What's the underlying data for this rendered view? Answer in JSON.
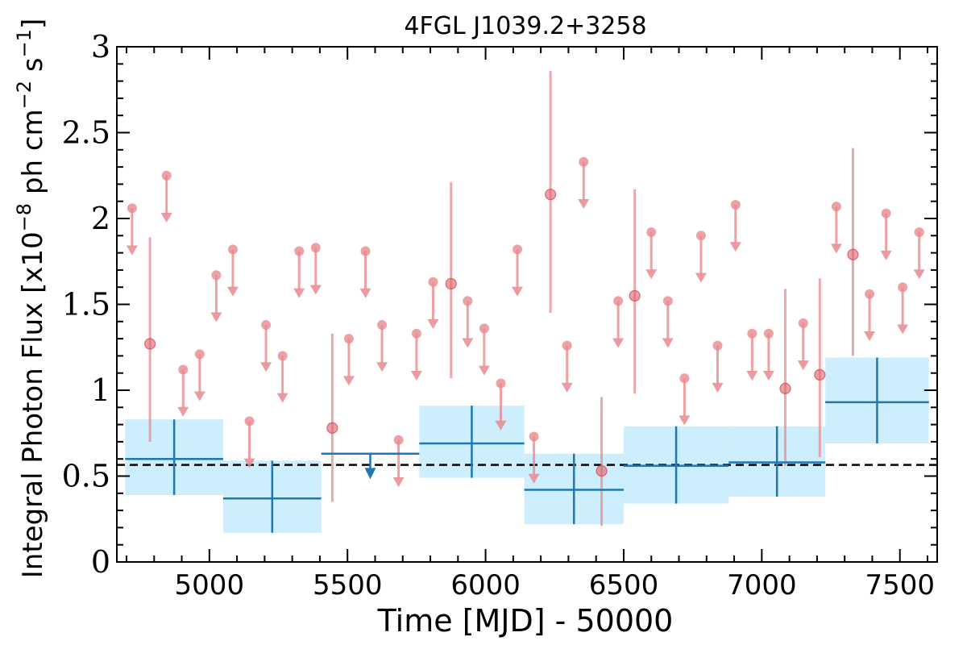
{
  "chart_data": {
    "type": "scatter",
    "title": "4FGL J1039.2+3258",
    "xlabel": "Time [MJD] - 50000",
    "ylabel": "Integral Photon Flux [x10",
    "ylabel_exp1": "−8",
    "ylabel_mid": " ph cm",
    "ylabel_exp2": "−2",
    "ylabel_end": " s",
    "ylabel_exp3": "−1",
    "ylabel_close": "]",
    "xlim": [
      4665,
      7635
    ],
    "ylim": [
      0,
      3
    ],
    "x_ticks": [
      5000,
      5500,
      6000,
      6500,
      7000,
      7500
    ],
    "x_tick_labels": [
      "5000",
      "5500",
      "6000",
      "6500",
      "7000",
      "7500"
    ],
    "y_ticks": [
      0,
      0.5,
      1,
      1.5,
      2,
      2.5,
      3
    ],
    "y_tick_labels": [
      "0",
      "0.5",
      "1",
      "1.5",
      "2",
      "2.5",
      "3"
    ],
    "mean_flux": 0.565,
    "colors": {
      "light_points": "#e88a8f",
      "long_bins": "#1f77b4",
      "band_fill": "#cdeefc"
    },
    "light_curve_detections": [
      {
        "x": 4785,
        "y": 1.27,
        "ylo": 0.7,
        "yhi": 1.89
      },
      {
        "x": 5445,
        "y": 0.78,
        "ylo": 0.35,
        "yhi": 1.33
      },
      {
        "x": 5875,
        "y": 1.62,
        "ylo": 1.07,
        "yhi": 2.21
      },
      {
        "x": 6235,
        "y": 2.14,
        "ylo": 1.45,
        "yhi": 2.86
      },
      {
        "x": 6420,
        "y": 0.53,
        "ylo": 0.21,
        "yhi": 0.96
      },
      {
        "x": 6540,
        "y": 1.55,
        "ylo": 0.98,
        "yhi": 2.17
      },
      {
        "x": 7085,
        "y": 1.01,
        "ylo": 0.56,
        "yhi": 1.59
      },
      {
        "x": 7210,
        "y": 1.09,
        "ylo": 0.61,
        "yhi": 1.65
      },
      {
        "x": 7330,
        "y": 1.79,
        "ylo": 1.2,
        "yhi": 2.41
      }
    ],
    "light_curve_upper_limits": [
      {
        "x": 4720,
        "y": 2.06
      },
      {
        "x": 4845,
        "y": 2.25
      },
      {
        "x": 4905,
        "y": 1.12
      },
      {
        "x": 4965,
        "y": 1.21
      },
      {
        "x": 5025,
        "y": 1.67
      },
      {
        "x": 5085,
        "y": 1.82
      },
      {
        "x": 5145,
        "y": 0.82
      },
      {
        "x": 5205,
        "y": 1.38
      },
      {
        "x": 5265,
        "y": 1.2
      },
      {
        "x": 5325,
        "y": 1.81
      },
      {
        "x": 5385,
        "y": 1.83
      },
      {
        "x": 5505,
        "y": 1.3
      },
      {
        "x": 5565,
        "y": 1.81
      },
      {
        "x": 5625,
        "y": 1.38
      },
      {
        "x": 5685,
        "y": 0.71
      },
      {
        "x": 5750,
        "y": 1.33
      },
      {
        "x": 5810,
        "y": 1.63
      },
      {
        "x": 5935,
        "y": 1.52
      },
      {
        "x": 5995,
        "y": 1.36
      },
      {
        "x": 6055,
        "y": 1.04
      },
      {
        "x": 6115,
        "y": 1.82
      },
      {
        "x": 6175,
        "y": 0.73
      },
      {
        "x": 6295,
        "y": 1.26
      },
      {
        "x": 6355,
        "y": 2.33
      },
      {
        "x": 6480,
        "y": 1.52
      },
      {
        "x": 6600,
        "y": 1.92
      },
      {
        "x": 6660,
        "y": 1.52
      },
      {
        "x": 6720,
        "y": 1.07
      },
      {
        "x": 6780,
        "y": 1.9
      },
      {
        "x": 6840,
        "y": 1.26
      },
      {
        "x": 6905,
        "y": 2.08
      },
      {
        "x": 6965,
        "y": 1.33
      },
      {
        "x": 7025,
        "y": 1.33
      },
      {
        "x": 7150,
        "y": 1.39
      },
      {
        "x": 7270,
        "y": 2.07
      },
      {
        "x": 7390,
        "y": 1.56
      },
      {
        "x": 7450,
        "y": 2.03
      },
      {
        "x": 7510,
        "y": 1.6
      },
      {
        "x": 7570,
        "y": 1.92
      }
    ],
    "long_bins": [
      {
        "x0": 4695,
        "x1": 5050,
        "y": 0.6,
        "ylo": 0.39,
        "yhi": 0.83
      },
      {
        "x0": 5050,
        "x1": 5405,
        "y": 0.37,
        "ylo": 0.17,
        "yhi": 0.59
      },
      {
        "x0": 5405,
        "x1": 5760,
        "y": 0.63,
        "upper_limit": true
      },
      {
        "x0": 5760,
        "x1": 6140,
        "y": 0.69,
        "ylo": 0.49,
        "yhi": 0.91
      },
      {
        "x0": 6140,
        "x1": 6500,
        "y": 0.42,
        "ylo": 0.22,
        "yhi": 0.63
      },
      {
        "x0": 6500,
        "x1": 6880,
        "y": 0.56,
        "ylo": 0.34,
        "yhi": 0.79
      },
      {
        "x0": 6880,
        "x1": 7230,
        "y": 0.58,
        "ylo": 0.38,
        "yhi": 0.79
      },
      {
        "x0": 7230,
        "x1": 7605,
        "y": 0.93,
        "ylo": 0.69,
        "yhi": 1.19
      }
    ]
  }
}
